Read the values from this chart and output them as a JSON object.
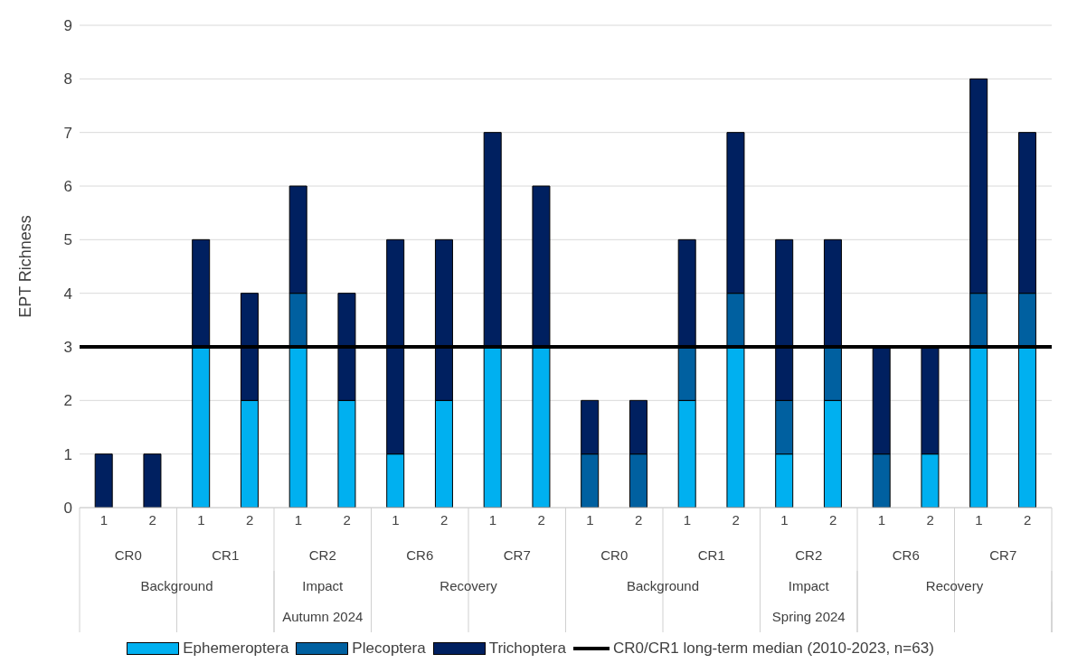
{
  "chart_data": {
    "type": "bar",
    "stacked": true,
    "ylabel": "EPT Richness",
    "categories": [
      "1",
      "2",
      "1",
      "2",
      "1",
      "2",
      "1",
      "2",
      "1",
      "2",
      "1",
      "2",
      "1",
      "2",
      "1",
      "2",
      "1",
      "2",
      "1",
      "2"
    ],
    "series": [
      {
        "name": "Ephemeroptera",
        "color": "#00b0f0",
        "values": [
          0,
          0,
          3,
          2,
          3,
          2,
          1,
          2,
          3,
          3,
          0,
          0,
          2,
          3,
          1,
          2,
          0,
          1,
          3,
          3
        ]
      },
      {
        "name": "Plecoptera",
        "color": "#0060a0",
        "values": [
          0,
          0,
          0,
          0,
          1,
          0,
          0,
          0,
          0,
          0,
          1,
          1,
          1,
          1,
          1,
          1,
          1,
          0,
          1,
          1
        ]
      },
      {
        "name": "Trichoptera",
        "color": "#002060",
        "values": [
          1,
          1,
          2,
          2,
          2,
          2,
          4,
          3,
          4,
          3,
          1,
          1,
          2,
          3,
          3,
          2,
          2,
          2,
          4,
          3
        ]
      }
    ],
    "ref_lines": [
      {
        "axis": "y",
        "value": 3,
        "color": "#000000"
      }
    ],
    "annotations": [
      "CR0",
      "CR1",
      "CR2",
      "CR6",
      "CR7",
      "CR0",
      "CR1",
      "CR2",
      "CR6",
      "CR7",
      "Background",
      "Impact",
      "Recovery",
      "Background",
      "Impact",
      "Recovery",
      "Autumn 2024",
      "Spring 2024",
      "CR0/CR1 long-term median (2010-2023, n=63)"
    ],
    "ylim": [
      0,
      9
    ],
    "yticks": [
      0,
      1,
      2,
      3,
      4,
      5,
      6,
      7,
      8,
      9
    ],
    "grid": "y",
    "legend": "bottom"
  }
}
